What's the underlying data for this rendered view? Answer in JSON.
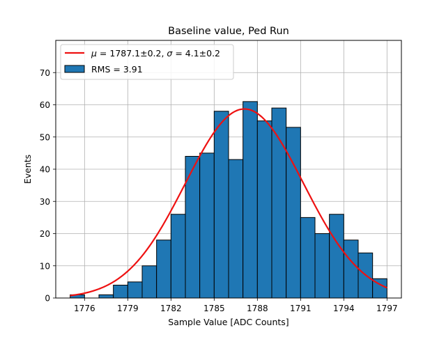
{
  "chart_data": {
    "type": "bar",
    "title": "Baseline value, Ped Run",
    "xlabel": "Sample Value [ADC Counts]",
    "ylabel": "Events",
    "xlim": [
      1774.0,
      1798.0
    ],
    "ylim": [
      0,
      80
    ],
    "grid": true,
    "legend_position": "top-left",
    "colors": {
      "bar": "#1f77b4",
      "edge": "#000000",
      "fit": "#ee1111"
    },
    "xticks": [
      1776,
      1779,
      1782,
      1785,
      1788,
      1791,
      1794,
      1797
    ],
    "yticks": [
      0,
      10,
      20,
      30,
      40,
      50,
      60,
      70
    ],
    "bins": {
      "start": 1775.0,
      "width": 1.0,
      "counts": [
        1,
        0,
        1,
        4,
        5,
        10,
        18,
        26,
        44,
        45,
        58,
        43,
        61,
        55,
        59,
        53,
        25,
        20,
        26,
        18,
        14,
        6
      ]
    },
    "fit": {
      "type": "gaussian",
      "mu": 1787.1,
      "sigma": 4.1,
      "amplitude": 58.7,
      "x_range": [
        1775.0,
        1797.0
      ]
    },
    "legend": {
      "fit_prefix": "μ",
      "fit_mid": " = 1787.1±0.2, ",
      "fit_sigma": "σ",
      "fit_suffix": " = 4.1±0.2",
      "hist_label": "RMS = 3.91"
    }
  }
}
